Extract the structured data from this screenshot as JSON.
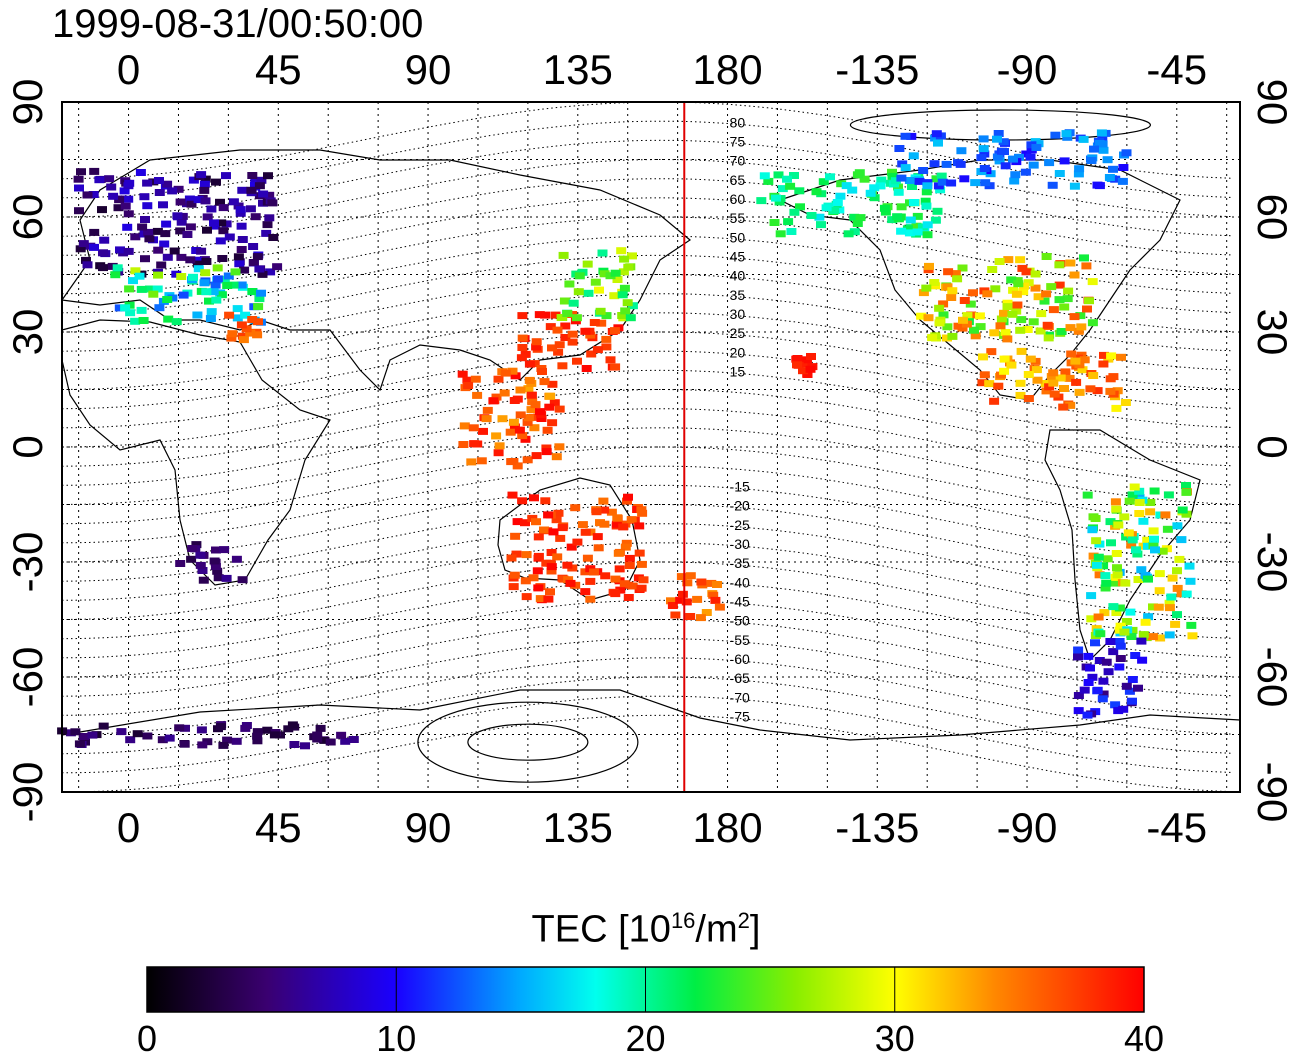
{
  "title": "1999-08-31/00:50:00",
  "axes": {
    "lon_ticks": [
      "0",
      "45",
      "90",
      "135",
      "180",
      "-135",
      "-90",
      "-45"
    ],
    "lat_ticks": [
      "90",
      "60",
      "30",
      "0",
      "-30",
      "-60",
      "-90"
    ]
  },
  "terminator_lon": 167,
  "contour_labels_north": [
    "80",
    "75",
    "70",
    "65",
    "60",
    "55",
    "50",
    "45",
    "40",
    "35",
    "30",
    "25",
    "20",
    "15"
  ],
  "contour_labels_south": [
    "-15",
    "-20",
    "-25",
    "-30",
    "-35",
    "-40",
    "-45",
    "-50",
    "-55",
    "-60",
    "-65",
    "-70",
    "-75"
  ],
  "colorbar": {
    "title_prefix": "TEC  [10",
    "title_exp": "16",
    "title_mid": "/m",
    "title_exp2": "2",
    "title_suffix": "]",
    "min": 0,
    "max": 40,
    "ticks": [
      "0",
      "10",
      "20",
      "30",
      "40"
    ]
  },
  "colors": {
    "terminator": "#e00000",
    "frame": "#000000"
  },
  "tec_regions": [
    {
      "name": "europe",
      "lon_range": [
        -15,
        45
      ],
      "lat_range": [
        45,
        72
      ],
      "tec_range": [
        2,
        9
      ]
    },
    {
      "name": "europe-south",
      "lon_range": [
        -5,
        40
      ],
      "lat_range": [
        32,
        47
      ],
      "tec_range": [
        12,
        28
      ]
    },
    {
      "name": "middle-east",
      "lon_range": [
        30,
        40
      ],
      "lat_range": [
        28,
        35
      ],
      "tec_range": [
        34,
        38
      ]
    },
    {
      "name": "japan-china",
      "lon_range": [
        118,
        148
      ],
      "lat_range": [
        20,
        35
      ],
      "tec_range": [
        36,
        40
      ]
    },
    {
      "name": "east-asia-north",
      "lon_range": [
        130,
        152
      ],
      "lat_range": [
        33,
        52
      ],
      "tec_range": [
        20,
        30
      ]
    },
    {
      "name": "indonesia",
      "lon_range": [
        100,
        130
      ],
      "lat_range": [
        -5,
        20
      ],
      "tec_range": [
        33,
        40
      ]
    },
    {
      "name": "australia",
      "lon_range": [
        115,
        155
      ],
      "lat_range": [
        -40,
        -12
      ],
      "tec_range": [
        35,
        40
      ]
    },
    {
      "name": "new-zealand",
      "lon_range": [
        163,
        178
      ],
      "lat_range": [
        -47,
        -33
      ],
      "tec_range": [
        33,
        40
      ]
    },
    {
      "name": "hawaii",
      "lon_range": [
        200,
        206
      ],
      "lat_range": [
        18,
        24
      ],
      "tec_range": [
        38,
        40
      ]
    },
    {
      "name": "alaska-canada",
      "lon_range": [
        190,
        245
      ],
      "lat_range": [
        55,
        72
      ],
      "tec_range": [
        17,
        24
      ]
    },
    {
      "name": "usa",
      "lon_range": [
        238,
        290
      ],
      "lat_range": [
        28,
        50
      ],
      "tec_range": [
        22,
        38
      ]
    },
    {
      "name": "central-america",
      "lon_range": [
        255,
        300
      ],
      "lat_range": [
        10,
        25
      ],
      "tec_range": [
        30,
        38
      ]
    },
    {
      "name": "south-america",
      "lon_range": [
        288,
        320
      ],
      "lat_range": [
        -50,
        -10
      ],
      "tec_range": [
        15,
        35
      ]
    },
    {
      "name": "patagonia",
      "lon_range": [
        285,
        305
      ],
      "lat_range": [
        -70,
        -50
      ],
      "tec_range": [
        5,
        12
      ]
    },
    {
      "name": "antarctica",
      "lon_range": [
        -20,
        70
      ],
      "lat_range": [
        -78,
        -72
      ],
      "tec_range": [
        2,
        6
      ]
    },
    {
      "name": "south-africa",
      "lon_range": [
        15,
        35
      ],
      "lat_range": [
        -35,
        -25
      ],
      "tec_range": [
        3,
        6
      ]
    },
    {
      "name": "arctic-north-america",
      "lon_range": [
        230,
        300
      ],
      "lat_range": [
        68,
        82
      ],
      "tec_range": [
        10,
        16
      ]
    }
  ]
}
